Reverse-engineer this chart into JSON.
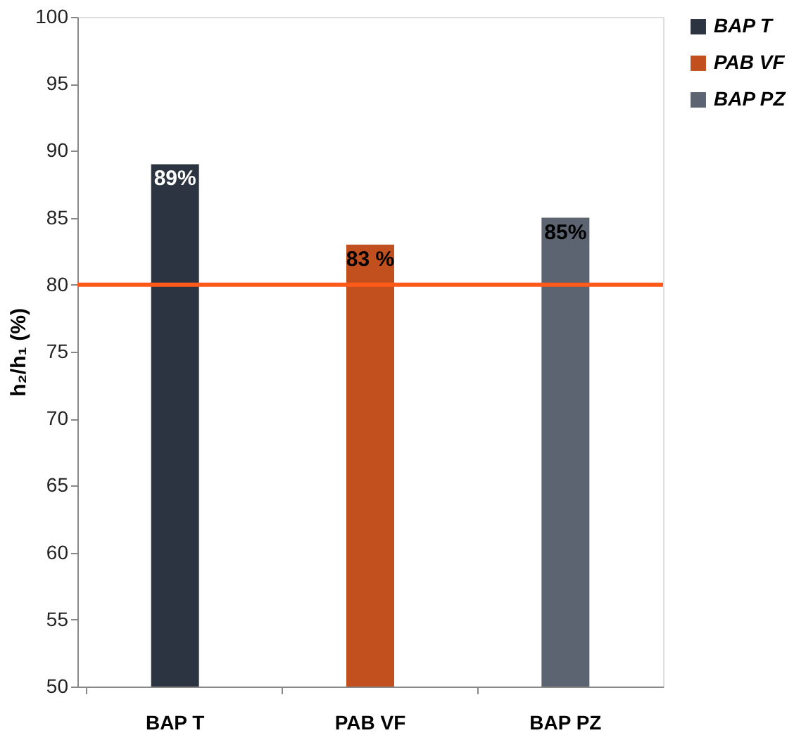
{
  "chart_data": {
    "type": "bar",
    "ylabel": "h₂/h₁ (%)",
    "categories": [
      "BAP T",
      "PAB VF",
      "BAP PZ"
    ],
    "series": [
      {
        "name": "BAP T",
        "color": "#2b3440",
        "values": [
          89,
          null,
          null
        ],
        "value_labels": [
          "89%",
          null,
          null
        ]
      },
      {
        "name": "PAB VF",
        "color": "#c2501f",
        "values": [
          null,
          83,
          null
        ],
        "value_labels": [
          null,
          "83 %",
          null
        ]
      },
      {
        "name": "BAP PZ",
        "color": "#5b6470",
        "values": [
          null,
          null,
          85
        ],
        "value_labels": [
          null,
          null,
          "85%"
        ]
      }
    ],
    "ylim": [
      50,
      100
    ],
    "yticks": [
      50,
      55,
      60,
      65,
      70,
      75,
      80,
      85,
      90,
      95,
      100
    ],
    "ref_lines": [
      {
        "axis": "y",
        "value": 80,
        "color": "#ff5a1a"
      }
    ],
    "grid": false,
    "legend": "top right"
  }
}
